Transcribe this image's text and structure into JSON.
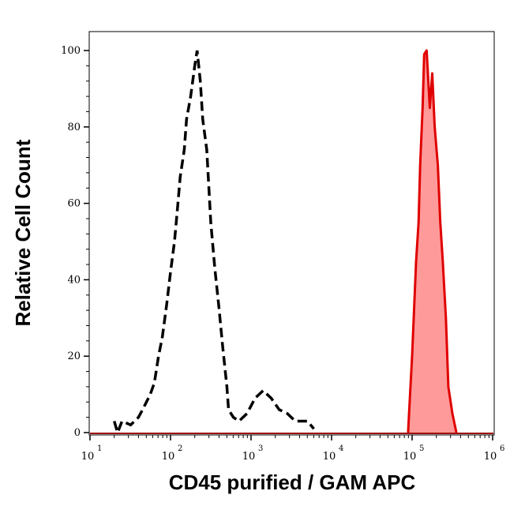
{
  "chart_data": {
    "type": "area",
    "xlabel": "CD45 purified / GAM APC",
    "ylabel": "Relative Cell Count",
    "x_scale": "log",
    "xlim": [
      10,
      1050000
    ],
    "ylim": [
      0,
      105
    ],
    "x_ticks": [
      {
        "base": "10",
        "exp": "1"
      },
      {
        "base": "10",
        "exp": "2"
      },
      {
        "base": "10",
        "exp": "3"
      },
      {
        "base": "10",
        "exp": "4"
      },
      {
        "base": "10",
        "exp": "5"
      },
      {
        "base": "10",
        "exp": "6"
      }
    ],
    "y_ticks": [
      "0",
      "20",
      "40",
      "60",
      "80",
      "100"
    ],
    "grid": false,
    "series": [
      {
        "style": "black dashed line, unfilled",
        "color": "#000000",
        "points": [
          [
            20,
            3
          ],
          [
            22,
            0
          ],
          [
            25,
            3
          ],
          [
            32,
            2
          ],
          [
            40,
            4
          ],
          [
            45,
            6
          ],
          [
            56,
            10
          ],
          [
            63,
            13
          ],
          [
            71,
            20
          ],
          [
            79,
            25
          ],
          [
            89,
            33
          ],
          [
            100,
            42
          ],
          [
            112,
            50
          ],
          [
            120,
            57
          ],
          [
            132,
            67
          ],
          [
            148,
            74
          ],
          [
            158,
            82
          ],
          [
            178,
            88
          ],
          [
            200,
            96
          ],
          [
            214,
            100
          ],
          [
            234,
            92
          ],
          [
            251,
            82
          ],
          [
            282,
            74
          ],
          [
            316,
            55
          ],
          [
            355,
            43
          ],
          [
            398,
            33
          ],
          [
            447,
            22
          ],
          [
            501,
            12
          ],
          [
            525,
            6
          ],
          [
            603,
            4
          ],
          [
            708,
            3
          ],
          [
            891,
            5
          ],
          [
            1122,
            9
          ],
          [
            1413,
            11
          ],
          [
            1778,
            9
          ],
          [
            2239,
            6
          ],
          [
            2818,
            5
          ],
          [
            3548,
            3
          ],
          [
            5012,
            3
          ],
          [
            6026,
            1
          ]
        ]
      },
      {
        "style": "red solid line, filled",
        "color": "#e00000",
        "fill": "#ff9a9a",
        "points": [
          [
            89125,
            0
          ],
          [
            93325,
            8
          ],
          [
            100000,
            20
          ],
          [
            112202,
            45
          ],
          [
            120226,
            55
          ],
          [
            125893,
            70
          ],
          [
            134896,
            85
          ],
          [
            141254,
            99
          ],
          [
            151356,
            100
          ],
          [
            165959,
            85
          ],
          [
            177828,
            94
          ],
          [
            190546,
            80
          ],
          [
            208930,
            70
          ],
          [
            223872,
            55
          ],
          [
            239883,
            45
          ],
          [
            263027,
            30
          ],
          [
            281838,
            12
          ],
          [
            316228,
            5
          ],
          [
            354813,
            0
          ]
        ]
      }
    ]
  }
}
